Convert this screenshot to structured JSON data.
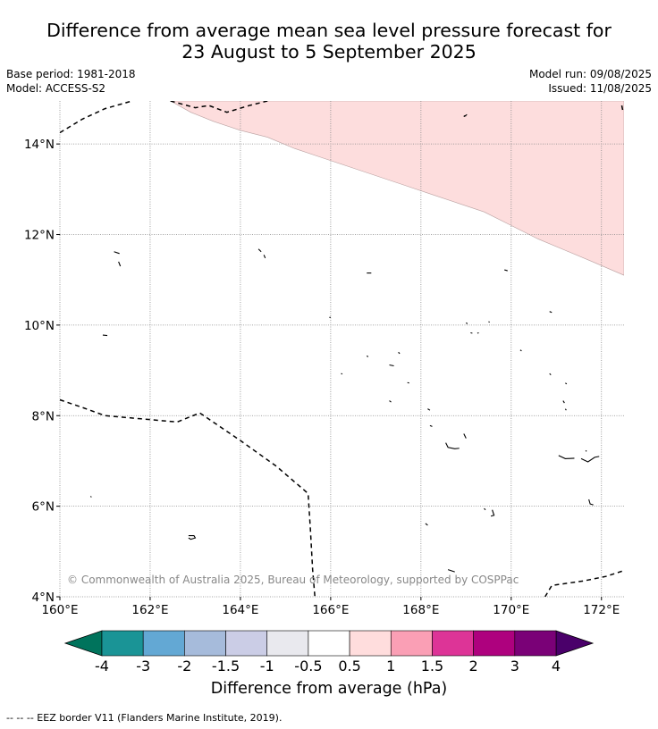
{
  "title": {
    "line1": "Difference from average mean sea level pressure forecast for",
    "line2": "23 August to 5 September 2025"
  },
  "meta": {
    "base_period": "Base period: 1981-2018",
    "model": "Model: ACCESS-S2",
    "model_run": "Model run: 09/08/2025",
    "issued": "Issued: 11/08/2025"
  },
  "map": {
    "lon_range": [
      160,
      172.5
    ],
    "lat_range": [
      4,
      14.95
    ],
    "x_ticks": [
      {
        "value": 160,
        "label": "160°E"
      },
      {
        "value": 162,
        "label": "162°E"
      },
      {
        "value": 164,
        "label": "164°E"
      },
      {
        "value": 166,
        "label": "166°E"
      },
      {
        "value": 168,
        "label": "168°E"
      },
      {
        "value": 170,
        "label": "170°E"
      },
      {
        "value": 172,
        "label": "172°E"
      }
    ],
    "y_ticks": [
      {
        "value": 4,
        "label": "4°N"
      },
      {
        "value": 6,
        "label": "6°N"
      },
      {
        "value": 8,
        "label": "8°N"
      },
      {
        "value": 10,
        "label": "10°N"
      },
      {
        "value": 12,
        "label": "12°N"
      },
      {
        "value": 14,
        "label": "14°N"
      }
    ],
    "copyright": "© Commonwealth of Australia 2025, Bureau of Meteorology, supported by COSPPac",
    "anomaly_region": {
      "category": "0.5 to 1",
      "color": "#fddddd",
      "boundary": [
        [
          162.45,
          14.95
        ],
        [
          162.9,
          14.7
        ],
        [
          163.4,
          14.5
        ],
        [
          164.0,
          14.3
        ],
        [
          164.6,
          14.15
        ],
        [
          165.2,
          13.9
        ],
        [
          165.8,
          13.7
        ],
        [
          166.4,
          13.5
        ],
        [
          167.0,
          13.3
        ],
        [
          167.6,
          13.1
        ],
        [
          168.2,
          12.9
        ],
        [
          168.8,
          12.7
        ],
        [
          169.4,
          12.5
        ],
        [
          170.0,
          12.2
        ],
        [
          170.6,
          11.9
        ],
        [
          171.2,
          11.65
        ],
        [
          171.8,
          11.4
        ],
        [
          172.5,
          11.1
        ]
      ]
    },
    "eez_borders": [
      [
        [
          160.0,
          14.25
        ],
        [
          160.5,
          14.55
        ],
        [
          161.0,
          14.78
        ],
        [
          161.6,
          14.95
        ]
      ],
      [
        [
          162.45,
          14.95
        ],
        [
          163.0,
          14.8
        ],
        [
          163.3,
          14.85
        ],
        [
          163.7,
          14.7
        ],
        [
          164.2,
          14.85
        ],
        [
          164.6,
          14.95
        ]
      ],
      [
        [
          172.45,
          14.85
        ],
        [
          172.47,
          14.75
        ]
      ],
      [
        [
          160.0,
          8.35
        ],
        [
          160.5,
          8.18
        ],
        [
          161.0,
          8.0
        ],
        [
          161.8,
          7.93
        ],
        [
          162.6,
          7.86
        ],
        [
          163.1,
          8.06
        ],
        [
          164.0,
          7.45
        ],
        [
          164.8,
          6.88
        ],
        [
          165.5,
          6.28
        ],
        [
          165.55,
          5.5
        ],
        [
          165.6,
          4.6
        ],
        [
          165.65,
          4.0
        ]
      ],
      [
        [
          170.75,
          4.0
        ],
        [
          170.9,
          4.25
        ],
        [
          171.6,
          4.35
        ],
        [
          172.1,
          4.45
        ],
        [
          172.5,
          4.58
        ]
      ]
    ],
    "coastlines": [
      [
        [
          161.2,
          11.62
        ],
        [
          161.32,
          11.58
        ]
      ],
      [
        [
          161.3,
          11.4
        ],
        [
          161.34,
          11.3
        ]
      ],
      [
        [
          164.4,
          11.68
        ],
        [
          164.46,
          11.62
        ]
      ],
      [
        [
          164.52,
          11.55
        ],
        [
          164.55,
          11.48
        ]
      ],
      [
        [
          168.95,
          14.6
        ],
        [
          169.02,
          14.65
        ]
      ],
      [
        [
          168.95,
          14.62
        ],
        [
          169.0,
          14.62
        ]
      ],
      [
        [
          166.8,
          11.15
        ],
        [
          166.9,
          11.15
        ]
      ],
      [
        [
          169.85,
          11.22
        ],
        [
          169.92,
          11.2
        ]
      ],
      [
        [
          170.85,
          10.3
        ],
        [
          170.9,
          10.28
        ]
      ],
      [
        [
          165.97,
          10.17
        ],
        [
          166.0,
          10.17
        ]
      ],
      [
        [
          160.95,
          9.78
        ],
        [
          161.05,
          9.77
        ]
      ],
      [
        [
          169.0,
          10.05
        ],
        [
          169.03,
          10.03
        ]
      ],
      [
        [
          169.5,
          10.08
        ],
        [
          169.52,
          10.06
        ]
      ],
      [
        [
          169.1,
          9.83
        ],
        [
          169.14,
          9.82
        ]
      ],
      [
        [
          169.25,
          9.82
        ],
        [
          169.28,
          9.83
        ]
      ],
      [
        [
          170.2,
          9.45
        ],
        [
          170.23,
          9.43
        ]
      ],
      [
        [
          167.5,
          9.4
        ],
        [
          167.53,
          9.37
        ]
      ],
      [
        [
          166.8,
          9.32
        ],
        [
          166.83,
          9.3
        ]
      ],
      [
        [
          167.3,
          9.12
        ],
        [
          167.4,
          9.1
        ]
      ],
      [
        [
          166.23,
          8.93
        ],
        [
          166.26,
          8.92
        ]
      ],
      [
        [
          170.85,
          8.93
        ],
        [
          170.88,
          8.9
        ]
      ],
      [
        [
          171.2,
          8.72
        ],
        [
          171.23,
          8.7
        ]
      ],
      [
        [
          167.7,
          8.73
        ],
        [
          167.74,
          8.72
        ]
      ],
      [
        [
          167.3,
          8.33
        ],
        [
          167.34,
          8.3
        ]
      ],
      [
        [
          171.15,
          8.33
        ],
        [
          171.18,
          8.28
        ]
      ],
      [
        [
          171.2,
          8.15
        ],
        [
          171.22,
          8.12
        ]
      ],
      [
        [
          168.15,
          8.15
        ],
        [
          168.2,
          8.12
        ]
      ],
      [
        [
          168.2,
          7.78
        ],
        [
          168.25,
          7.76
        ]
      ],
      [
        [
          168.95,
          7.6
        ],
        [
          169.0,
          7.5
        ]
      ],
      [
        [
          168.55,
          7.4
        ],
        [
          168.6,
          7.3
        ],
        [
          168.75,
          7.27
        ],
        [
          168.85,
          7.28
        ]
      ],
      [
        [
          171.05,
          7.12
        ],
        [
          171.2,
          7.05
        ],
        [
          171.4,
          7.06
        ]
      ],
      [
        [
          171.55,
          7.05
        ],
        [
          171.7,
          6.98
        ],
        [
          171.85,
          7.08
        ],
        [
          171.95,
          7.1
        ]
      ],
      [
        [
          171.65,
          7.23
        ],
        [
          171.67,
          7.21
        ]
      ],
      [
        [
          171.72,
          6.15
        ],
        [
          171.75,
          6.05
        ],
        [
          171.82,
          6.03
        ]
      ],
      [
        [
          169.58,
          5.92
        ],
        [
          169.62,
          5.8
        ],
        [
          169.55,
          5.78
        ]
      ],
      [
        [
          169.4,
          5.95
        ],
        [
          169.43,
          5.92
        ]
      ],
      [
        [
          160.68,
          6.22
        ],
        [
          160.7,
          6.2
        ]
      ],
      [
        [
          162.85,
          5.35
        ],
        [
          162.97,
          5.35
        ],
        [
          163.0,
          5.3
        ],
        [
          162.9,
          5.27
        ],
        [
          162.85,
          5.3
        ]
      ],
      [
        [
          168.1,
          5.62
        ],
        [
          168.15,
          5.58
        ]
      ],
      [
        [
          168.6,
          4.6
        ],
        [
          168.75,
          4.55
        ]
      ]
    ]
  },
  "colorbar": {
    "label": "Difference from average (hPa)",
    "under_color": "#00735c",
    "over_color": "#4a006a",
    "bins": [
      {
        "color": "#1a9496"
      },
      {
        "color": "#63a8d4"
      },
      {
        "color": "#a6bbdb"
      },
      {
        "color": "#cbcde6"
      },
      {
        "color": "#e9e9ee"
      },
      {
        "color": "#ffffff"
      },
      {
        "color": "#ffdddd"
      },
      {
        "color": "#fa9fb5"
      },
      {
        "color": "#dd3497"
      },
      {
        "color": "#ae017e"
      },
      {
        "color": "#7a0177"
      }
    ],
    "ticks": [
      "-4",
      "-3",
      "-2",
      "-1.5",
      "-1",
      "-0.5",
      "0.5",
      "1",
      "1.5",
      "2",
      "3",
      "4"
    ]
  },
  "legend": {
    "text": "--  --  -- EEZ border V11 (Flanders Marine Institute, 2019)."
  }
}
